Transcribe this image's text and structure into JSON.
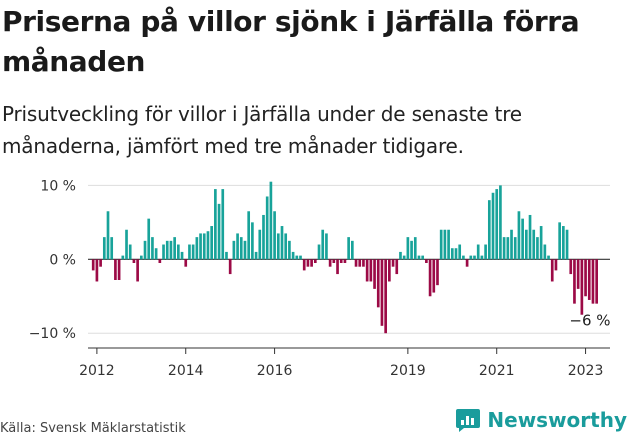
{
  "title": "Priserna på villor sjönk i Järfälla förra månaden",
  "subtitle": "Prisutveckling för villor i Järfälla under de senaste tre månaderna, jämfört med tre månader tidigare.",
  "source": "Källa: Svensk Mäklarstatistik",
  "brand": "Newsworthy",
  "colors": {
    "positive": "#18a39a",
    "negative": "#9c0a46",
    "brand": "#1a9c9c"
  },
  "chart_data": {
    "type": "bar",
    "ylim": [
      -12,
      11
    ],
    "yticks": [
      10,
      0,
      -10
    ],
    "ytick_labels": [
      "10 %",
      "0 %",
      "−10 %"
    ],
    "xticks": [
      2012,
      2014,
      2016,
      2019,
      2021,
      2023
    ],
    "xtick_labels": [
      "2012",
      "2014",
      "2016",
      "2019",
      "2021",
      "2023"
    ],
    "x_start": 2011.917,
    "x_step": 0.08333,
    "grid": true,
    "annotation": "−6 %",
    "values": [
      -1.5,
      -3,
      -1,
      3,
      6.5,
      3,
      -2.8,
      -2.8,
      0.5,
      4,
      2,
      -0.5,
      -3,
      0.5,
      2.5,
      5.5,
      3,
      1.5,
      -0.5,
      2,
      2.5,
      2.5,
      3,
      2,
      1,
      -1,
      2,
      2,
      3,
      3.5,
      3.5,
      3.8,
      4.5,
      9.5,
      7.5,
      9.5,
      1,
      -2,
      2.5,
      3.5,
      3,
      2.5,
      6.5,
      5,
      1,
      4,
      6,
      8.5,
      10.5,
      6.5,
      3.5,
      4.5,
      3.5,
      2.5,
      1,
      0.5,
      0.5,
      -1.5,
      -1,
      -1,
      -0.5,
      2,
      4,
      3.5,
      -1,
      -0.5,
      -2,
      -0.5,
      -0.5,
      3,
      2.5,
      -1,
      -1,
      -1,
      -3,
      -3,
      -4,
      -6.5,
      -9,
      -10,
      -3,
      -1,
      -2,
      1,
      0.5,
      3,
      2.5,
      3,
      0.5,
      0.5,
      -0.5,
      -5,
      -4.5,
      -3.5,
      4,
      4,
      4,
      1.5,
      1.5,
      2,
      0.5,
      -1,
      0.5,
      0.5,
      2,
      0.5,
      2,
      8,
      9,
      9.5,
      10,
      3,
      3,
      4,
      3,
      6.5,
      5.5,
      4,
      6,
      4,
      3,
      4.5,
      2,
      0.5,
      -3,
      -1.5,
      5,
      4.5,
      4,
      -2,
      -6,
      -4,
      -7.5,
      -5,
      -5.5,
      -6,
      -6
    ]
  }
}
